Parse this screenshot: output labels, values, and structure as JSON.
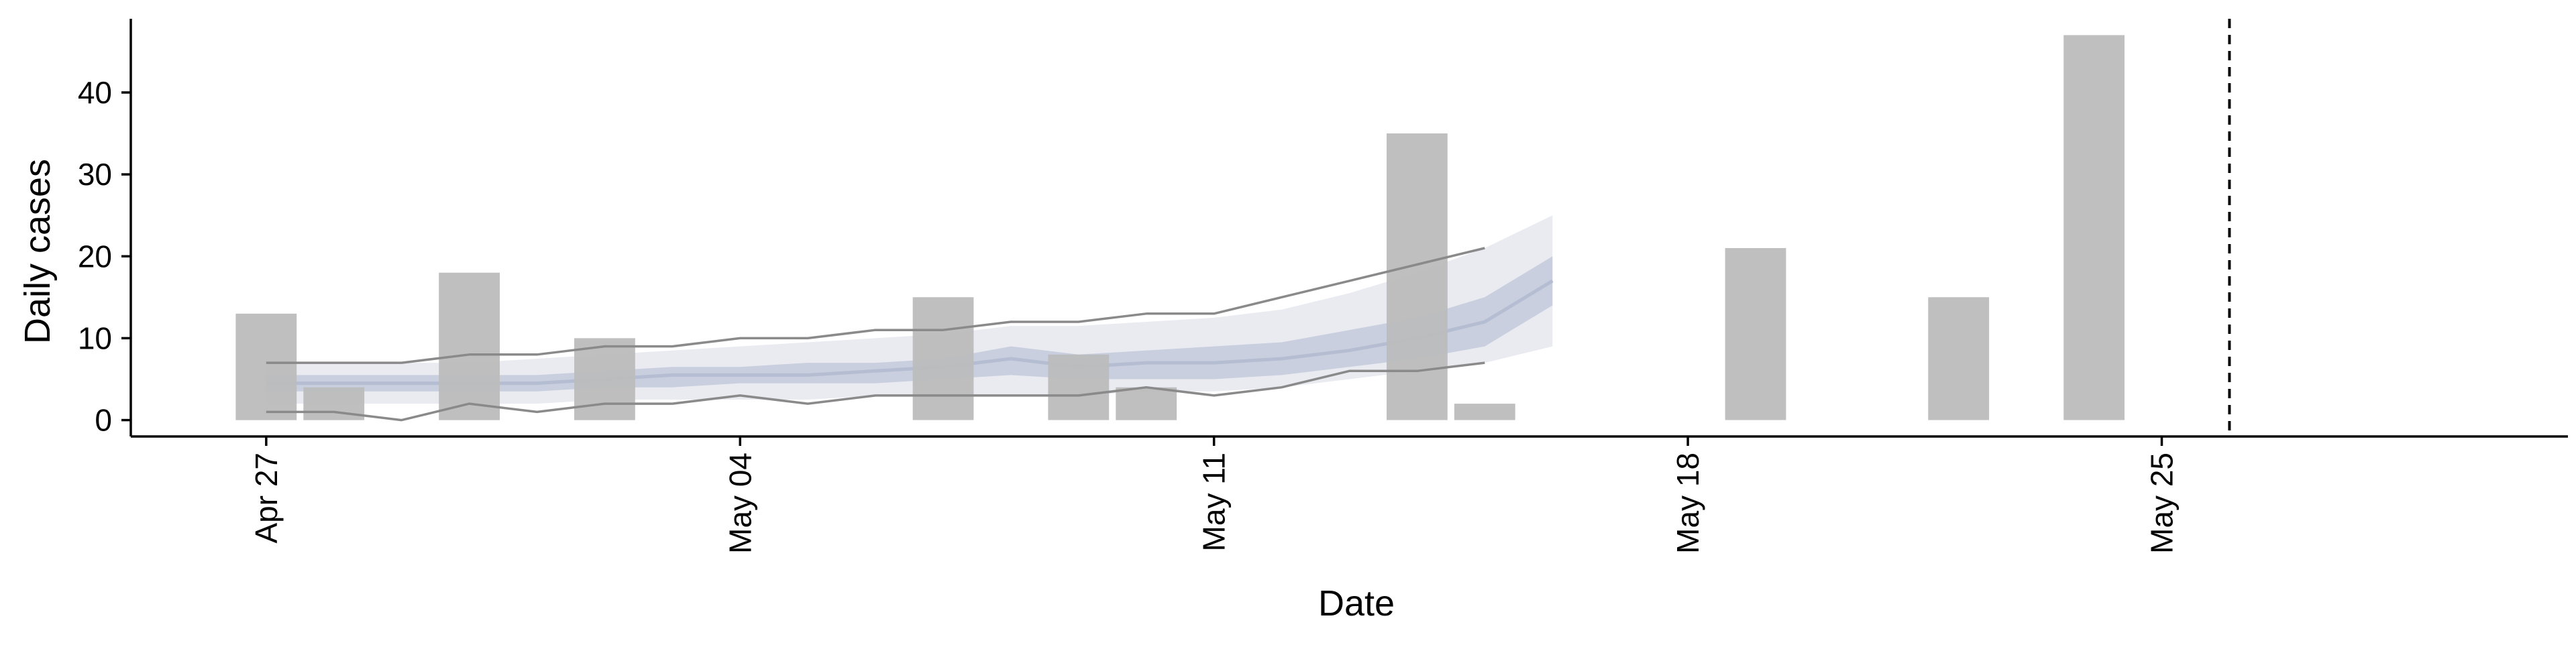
{
  "chart_data": {
    "type": "bar",
    "xlabel": "Date",
    "ylabel": "Daily cases",
    "x_ticks": [
      {
        "date": "2020-04-27",
        "label": "Apr 27"
      },
      {
        "date": "2020-05-04",
        "label": "May 04"
      },
      {
        "date": "2020-05-11",
        "label": "May 11"
      },
      {
        "date": "2020-05-18",
        "label": "May 18"
      },
      {
        "date": "2020-05-25",
        "label": "May 25"
      }
    ],
    "y_ticks": [
      0,
      10,
      20,
      30,
      40
    ],
    "xlim": [
      "2020-04-25",
      "2020-05-31"
    ],
    "ylim": [
      -2,
      49
    ],
    "grid": false,
    "vline_date": "2020-05-26",
    "colors": {
      "bars": "#bcbcbc",
      "outer_band": "#e9ebf1",
      "inner_band": "#c3cadb",
      "median": "#b4bdd2",
      "projection_lines": "#8a8a8a",
      "axis": "#000000"
    },
    "bars": [
      {
        "date": "2020-04-27",
        "value": 13
      },
      {
        "date": "2020-04-28",
        "value": 4
      },
      {
        "date": "2020-04-30",
        "value": 18
      },
      {
        "date": "2020-05-02",
        "value": 10
      },
      {
        "date": "2020-05-07",
        "value": 15
      },
      {
        "date": "2020-05-09",
        "value": 8
      },
      {
        "date": "2020-05-10",
        "value": 4
      },
      {
        "date": "2020-05-14",
        "value": 35
      },
      {
        "date": "2020-05-15",
        "value": 2
      },
      {
        "date": "2020-05-19",
        "value": 21
      },
      {
        "date": "2020-05-22",
        "value": 15
      },
      {
        "date": "2020-05-24",
        "value": 47
      }
    ],
    "band": [
      {
        "date": "2020-04-27",
        "lo95": 2,
        "lo50": 3.5,
        "median": 4.5,
        "hi50": 5.5,
        "hi95": 7
      },
      {
        "date": "2020-04-28",
        "lo95": 2,
        "lo50": 3.5,
        "median": 4.5,
        "hi50": 5.5,
        "hi95": 7
      },
      {
        "date": "2020-04-29",
        "lo95": 2,
        "lo50": 3.5,
        "median": 4.5,
        "hi50": 5.5,
        "hi95": 7
      },
      {
        "date": "2020-04-30",
        "lo95": 2,
        "lo50": 3.5,
        "median": 4.5,
        "hi50": 5.5,
        "hi95": 7
      },
      {
        "date": "2020-05-01",
        "lo95": 2,
        "lo50": 3.5,
        "median": 4.5,
        "hi50": 5.5,
        "hi95": 7.5
      },
      {
        "date": "2020-05-02",
        "lo95": 2.5,
        "lo50": 4,
        "median": 5,
        "hi50": 6,
        "hi95": 8
      },
      {
        "date": "2020-05-03",
        "lo95": 2.5,
        "lo50": 4,
        "median": 5.5,
        "hi50": 6.5,
        "hi95": 8.5
      },
      {
        "date": "2020-05-04",
        "lo95": 2.5,
        "lo50": 4.5,
        "median": 5.5,
        "hi50": 6.5,
        "hi95": 9
      },
      {
        "date": "2020-05-05",
        "lo95": 2.5,
        "lo50": 4.5,
        "median": 5.5,
        "hi50": 7,
        "hi95": 9.5
      },
      {
        "date": "2020-05-06",
        "lo95": 3,
        "lo50": 4.5,
        "median": 6,
        "hi50": 7,
        "hi95": 10
      },
      {
        "date": "2020-05-07",
        "lo95": 3,
        "lo50": 5,
        "median": 6.5,
        "hi50": 7.5,
        "hi95": 10.5
      },
      {
        "date": "2020-05-08",
        "lo95": 3,
        "lo50": 5.5,
        "median": 7.5,
        "hi50": 9,
        "hi95": 11.5
      },
      {
        "date": "2020-05-09",
        "lo95": 3,
        "lo50": 5,
        "median": 6.5,
        "hi50": 8,
        "hi95": 11.5
      },
      {
        "date": "2020-05-10",
        "lo95": 3.5,
        "lo50": 5,
        "median": 7,
        "hi50": 8.5,
        "hi95": 12
      },
      {
        "date": "2020-05-11",
        "lo95": 3.5,
        "lo50": 5,
        "median": 7,
        "hi50": 9,
        "hi95": 12.5
      },
      {
        "date": "2020-05-12",
        "lo95": 4,
        "lo50": 5.5,
        "median": 7.5,
        "hi50": 9.5,
        "hi95": 13.5
      },
      {
        "date": "2020-05-13",
        "lo95": 5,
        "lo50": 6.5,
        "median": 8.5,
        "hi50": 11,
        "hi95": 15.5
      },
      {
        "date": "2020-05-14",
        "lo95": 6,
        "lo50": 7.5,
        "median": 10,
        "hi50": 12.5,
        "hi95": 18
      },
      {
        "date": "2020-05-15",
        "lo95": 7,
        "lo50": 9,
        "median": 12,
        "hi50": 15,
        "hi95": 21
      },
      {
        "date": "2020-05-16",
        "lo95": 9,
        "lo50": 14,
        "median": 17,
        "hi50": 20,
        "hi95": 25
      }
    ],
    "lines": [
      {
        "name": "upper",
        "points": [
          {
            "date": "2020-04-27",
            "value": 7
          },
          {
            "date": "2020-04-29",
            "value": 7
          },
          {
            "date": "2020-04-30",
            "value": 8
          },
          {
            "date": "2020-05-01",
            "value": 8
          },
          {
            "date": "2020-05-02",
            "value": 9
          },
          {
            "date": "2020-05-03",
            "value": 9
          },
          {
            "date": "2020-05-04",
            "value": 10
          },
          {
            "date": "2020-05-05",
            "value": 10
          },
          {
            "date": "2020-05-06",
            "value": 11
          },
          {
            "date": "2020-05-07",
            "value": 11
          },
          {
            "date": "2020-05-08",
            "value": 12
          },
          {
            "date": "2020-05-09",
            "value": 12
          },
          {
            "date": "2020-05-10",
            "value": 13
          },
          {
            "date": "2020-05-11",
            "value": 13
          },
          {
            "date": "2020-05-12",
            "value": 15
          },
          {
            "date": "2020-05-13",
            "value": 17
          },
          {
            "date": "2020-05-14",
            "value": 19
          },
          {
            "date": "2020-05-15",
            "value": 21
          }
        ]
      },
      {
        "name": "lower",
        "points": [
          {
            "date": "2020-04-27",
            "value": 1
          },
          {
            "date": "2020-04-28",
            "value": 1
          },
          {
            "date": "2020-04-29",
            "value": 0
          },
          {
            "date": "2020-04-30",
            "value": 2
          },
          {
            "date": "2020-05-01",
            "value": 1
          },
          {
            "date": "2020-05-02",
            "value": 2
          },
          {
            "date": "2020-05-03",
            "value": 2
          },
          {
            "date": "2020-05-04",
            "value": 3
          },
          {
            "date": "2020-05-05",
            "value": 2
          },
          {
            "date": "2020-05-06",
            "value": 3
          },
          {
            "date": "2020-05-07",
            "value": 3
          },
          {
            "date": "2020-05-08",
            "value": 3
          },
          {
            "date": "2020-05-09",
            "value": 3
          },
          {
            "date": "2020-05-10",
            "value": 4
          },
          {
            "date": "2020-05-11",
            "value": 3
          },
          {
            "date": "2020-05-12",
            "value": 4
          },
          {
            "date": "2020-05-13",
            "value": 6
          },
          {
            "date": "2020-05-14",
            "value": 6
          },
          {
            "date": "2020-05-15",
            "value": 7
          }
        ]
      }
    ]
  }
}
